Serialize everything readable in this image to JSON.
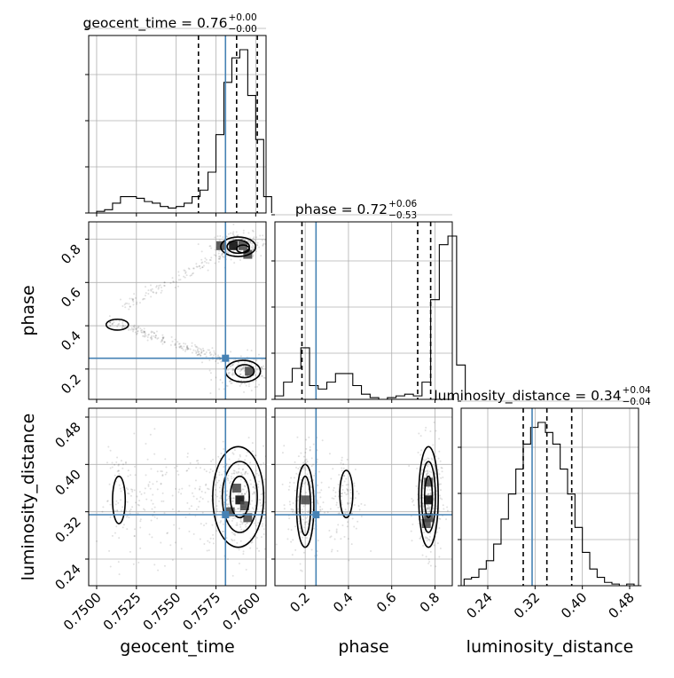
{
  "chart_data": {
    "type": "corner",
    "parameters": [
      "geocent_time",
      "phase",
      "luminosity_distance"
    ],
    "axis_labels": {
      "geocent_time": "geocent_time",
      "phase": "phase",
      "luminosity_distance": "luminosity_distance"
    },
    "ranges": {
      "geocent_time": [
        0.7495,
        0.76065
      ],
      "phase": [
        0.06,
        0.88
      ],
      "luminosity_distance": [
        0.195,
        0.495
      ]
    },
    "ticks": {
      "geocent_time": {
        "values": [
          0.75,
          0.7525,
          0.755,
          0.7575,
          0.76
        ],
        "labels": [
          "0.7500",
          "0.7525",
          "0.7550",
          "0.7575",
          "0.7600"
        ]
      },
      "phase": {
        "values": [
          0.2,
          0.4,
          0.6,
          0.8
        ],
        "labels": [
          "0.2",
          "0.4",
          "0.6",
          "0.8"
        ]
      },
      "luminosity_distance": {
        "values": [
          0.24,
          0.32,
          0.4,
          0.48
        ],
        "labels": [
          "0.24",
          "0.32",
          "0.40",
          "0.48"
        ]
      }
    },
    "truths": {
      "geocent_time": 0.7581,
      "phase": 0.25,
      "luminosity_distance": 0.315
    },
    "titles": {
      "geocent_time": {
        "name": "geocent_time",
        "median": "0.76",
        "plus": "+0.00",
        "minus": "−0.00"
      },
      "phase": {
        "name": "phase",
        "median": "0.72",
        "plus": "+0.06",
        "minus": "−0.53"
      },
      "luminosity_distance": {
        "name": "luminosity_distance",
        "median": "0.34",
        "plus": "+0.04",
        "minus": "−0.04"
      }
    },
    "quantiles": {
      "geocent_time": [
        0.7564,
        0.7588,
        0.7601
      ],
      "phase": [
        0.185,
        0.72,
        0.78
      ],
      "luminosity_distance": [
        0.3,
        0.34,
        0.382
      ]
    },
    "hist1d": {
      "geocent_time": {
        "edges_start": 0.75,
        "bin_width": 0.0005,
        "counts": [
          1,
          2,
          6,
          10,
          10,
          9,
          7,
          6,
          4,
          3,
          4,
          6,
          10,
          14,
          25,
          48,
          80,
          95,
          100,
          72,
          45,
          10
        ]
      },
      "phase": {
        "edges_start": 0.06,
        "bin_width": 0.04,
        "counts": [
          2,
          10,
          18,
          30,
          8,
          6,
          10,
          15,
          15,
          8,
          3,
          1,
          0,
          1,
          2,
          3,
          2,
          10,
          58,
          90,
          95,
          20
        ]
      },
      "luminosity_distance": {
        "edges_start": 0.2,
        "bin_width": 0.0125,
        "counts": [
          4,
          5,
          10,
          15,
          25,
          40,
          55,
          70,
          85,
          95,
          98,
          92,
          85,
          70,
          55,
          35,
          20,
          10,
          5,
          2,
          1,
          0,
          1,
          0
        ]
      }
    },
    "hist2d_peaks": {
      "phase_vs_geocent_time": [
        [
          0.7586,
          0.77
        ],
        [
          0.7592,
          0.77
        ],
        [
          0.7595,
          0.73
        ],
        [
          0.7578,
          0.77
        ],
        [
          0.7596,
          0.19
        ]
      ],
      "luminosity_distance_vs_geocent_time": [
        [
          0.759,
          0.34
        ],
        [
          0.7593,
          0.33
        ],
        [
          0.7588,
          0.36
        ],
        [
          0.7584,
          0.32
        ],
        [
          0.7595,
          0.31
        ]
      ],
      "luminosity_distance_vs_phase": [
        [
          0.77,
          0.34
        ],
        [
          0.77,
          0.37
        ],
        [
          0.77,
          0.31
        ],
        [
          0.76,
          0.3
        ],
        [
          0.2,
          0.34
        ]
      ]
    },
    "grid": true
  }
}
